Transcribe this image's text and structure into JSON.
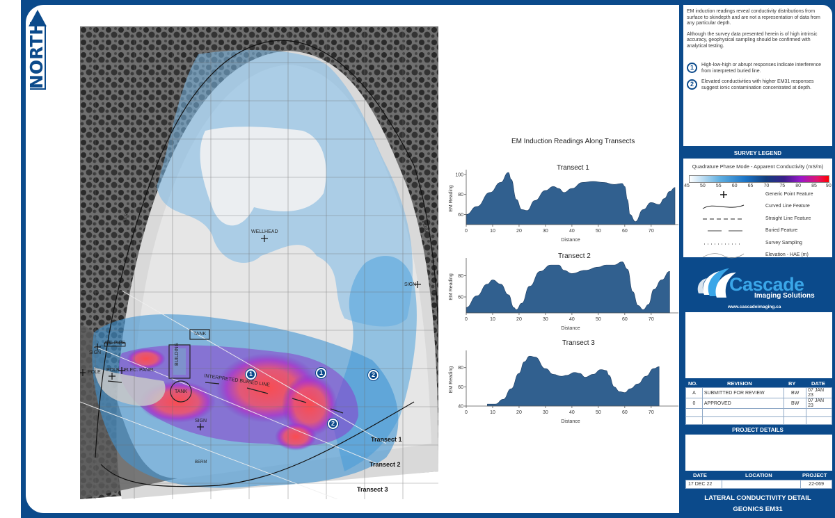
{
  "north": {
    "label": "NORTH"
  },
  "map": {
    "labels": {
      "wellhead": "WELLHEAD",
      "sign_east": "SIGN",
      "sign_west": "SIGN",
      "sign_south": "SIGN",
      "ag_pipe": "A/G PIPE",
      "pole_left": "POLE",
      "pole_right": "POLE",
      "elec_panel": "ELEC. PANEL",
      "tank_north": "TANK",
      "tank_round": "TANK",
      "building": "BUILDING",
      "buried_line": "INTERPRETED BURIED LINE",
      "berm_west": "BERM",
      "berm_east": "BERM",
      "berm_south": "BERM"
    },
    "transects": [
      "Transect 1",
      "Transect 2",
      "Transect 3"
    ],
    "badges": [
      "1",
      "1",
      "2",
      "2"
    ]
  },
  "charts": {
    "title": "EM Induction Readings Along Transects",
    "xlabel": "Distance",
    "ylabel": "EM Reading"
  },
  "chart_data": [
    {
      "type": "area",
      "title": "Transect 1",
      "xlabel": "Distance",
      "ylabel": "EM Reading",
      "x_ticks": [
        0,
        10,
        20,
        30,
        40,
        50,
        60,
        70
      ],
      "y_ticks": [
        60,
        80,
        100
      ],
      "xlim": [
        0,
        79
      ],
      "ylim": [
        50,
        102
      ],
      "color": "#31608f",
      "x": [
        0,
        4,
        9,
        13,
        16,
        17,
        19,
        21,
        23,
        26,
        30,
        33,
        35,
        37,
        40,
        44,
        48,
        52,
        56,
        59,
        60,
        61,
        62,
        64,
        67,
        70,
        73,
        75,
        77,
        79
      ],
      "values": [
        60,
        68,
        82,
        92,
        102,
        95,
        75,
        65,
        64,
        74,
        84,
        88,
        86,
        82,
        86,
        92,
        93,
        92,
        90,
        91,
        88,
        75,
        60,
        53,
        65,
        72,
        70,
        76,
        83,
        87
      ]
    },
    {
      "type": "area",
      "title": "Transect 2",
      "xlabel": "Distance",
      "ylabel": "EM Reading",
      "x_ticks": [
        0,
        10,
        20,
        30,
        40,
        50,
        60,
        70
      ],
      "y_ticks": [
        60,
        80
      ],
      "xlim": [
        0,
        79
      ],
      "ylim": [
        45,
        94
      ],
      "color": "#31608f",
      "x": [
        0,
        4,
        8,
        10,
        13,
        16,
        18,
        19,
        21,
        24,
        28,
        32,
        35,
        37,
        40,
        45,
        50,
        53,
        56,
        59,
        61,
        63,
        65,
        67,
        69,
        71,
        74,
        77
      ],
      "values": [
        50,
        61,
        72,
        76,
        72,
        62,
        50,
        48,
        54,
        70,
        84,
        90,
        90,
        85,
        82,
        85,
        88,
        90,
        90,
        93,
        86,
        65,
        52,
        48,
        53,
        67,
        76,
        84
      ]
    },
    {
      "type": "area",
      "title": "Transect 3",
      "xlabel": "Distance",
      "ylabel": "EM Reading",
      "x_ticks": [
        0,
        10,
        20,
        30,
        40,
        50,
        60,
        70
      ],
      "y_ticks": [
        40,
        60,
        80
      ],
      "xlim": [
        0,
        77
      ],
      "ylim": [
        40,
        95
      ],
      "color": "#31608f",
      "x": [
        8,
        11,
        14,
        17,
        20,
        22,
        24,
        26,
        30,
        33,
        36,
        38,
        41,
        43,
        45,
        48,
        51,
        53,
        54,
        56,
        58,
        60,
        62,
        65,
        68,
        71,
        73
      ],
      "values": [
        42,
        42,
        47,
        58,
        74,
        86,
        92,
        91,
        79,
        73,
        71,
        72,
        75,
        74,
        70,
        73,
        78,
        77,
        72,
        60,
        55,
        54,
        58,
        63,
        71,
        79,
        81
      ]
    }
  ],
  "notes": {
    "paragraph1": "EM induction readings reveal conductivity distributions from surface to skindepth and are not a representation of data from any particular depth.",
    "paragraph2": "Although the survey data presented herein is of high intrinsic accuracy, geophysical sampling should be confirmed with analytical testing.",
    "items": [
      {
        "num": "1",
        "text": "High-low-high or abrupt responses indicate interference from interpreted buried line."
      },
      {
        "num": "2",
        "text": "Elevated conductivities with higher EM31 responses suggest ionic contamination concentrated at depth."
      }
    ]
  },
  "legend": {
    "header": "SURVEY LEGEND",
    "colorbar_title": "Quadrature Phase Mode - Apparent Conductivity (mS/m)",
    "colorbar_ticks": [
      "45",
      "50",
      "55",
      "60",
      "65",
      "70",
      "75",
      "80",
      "85",
      "90"
    ],
    "items": [
      {
        "symbol": "plus-icon",
        "label": "Generic Point Feature"
      },
      {
        "symbol": "curved-line-icon",
        "label": "Curved Line Feature"
      },
      {
        "symbol": "dashed-line-icon",
        "label": "Straight Line Feature"
      },
      {
        "symbol": "long-dash-line-icon",
        "label": "Buried Feature"
      },
      {
        "symbol": "dotted-line-icon",
        "label": "Survey Sampling"
      },
      {
        "symbol": "contour-line-icon",
        "label": "Elevation - HAE (m)"
      }
    ]
  },
  "logo": {
    "name": "Cascade",
    "tagline": "Imaging Solutions",
    "url": "www.cascadeimaging.ca"
  },
  "revisions": {
    "headers": {
      "no": "NO.",
      "revision": "REVISION",
      "by": "BY",
      "date": "DATE"
    },
    "rows": [
      {
        "no": "A",
        "revision": "SUBMITTED FOR REVIEW",
        "by": "BW",
        "date": "07 JAN 23"
      },
      {
        "no": "0",
        "revision": "APPROVED",
        "by": "BW",
        "date": "07 JAN 23"
      },
      {
        "no": "",
        "revision": "",
        "by": "",
        "date": ""
      },
      {
        "no": "",
        "revision": "",
        "by": "",
        "date": ""
      }
    ]
  },
  "project": {
    "header": "PROJECT DETAILS",
    "labels": {
      "date": "DATE",
      "location": "LOCATION",
      "project": "PROJECT"
    },
    "values": {
      "date": "17 DEC 22",
      "location": "",
      "project": "22-069"
    },
    "title_line1": "LATERAL CONDUCTIVITY DETAIL",
    "title_line2": "GEONICS EM31"
  },
  "colors": {
    "brand_blue": "#0b4a8b",
    "chart_fill": "#31608f",
    "logo_cyan": "#3aa6e8"
  }
}
